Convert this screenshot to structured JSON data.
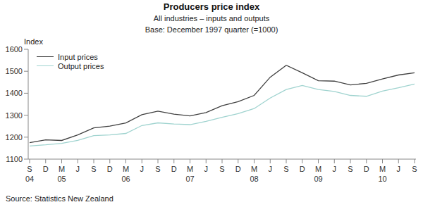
{
  "chart_data": {
    "type": "line",
    "title": "Producers price index",
    "subtitle": "All industries – inputs and outputs",
    "note": "Base: December 1997 quarter (=1000)",
    "y_label": "Index",
    "source": "Source: Statistics New Zealand",
    "categories": [
      "S\n04",
      "D",
      "M\n05",
      "J",
      "S",
      "D",
      "M\n06",
      "J",
      "S",
      "D",
      "M\n07",
      "J",
      "S",
      "D",
      "M\n08",
      "J",
      "S",
      "D",
      "M\n09",
      "J",
      "S",
      "D",
      "M\n10",
      "J",
      "S"
    ],
    "series": [
      {
        "name": "Input prices",
        "color": "#404040",
        "values": [
          1175,
          1188,
          1185,
          1210,
          1242,
          1250,
          1265,
          1302,
          1318,
          1305,
          1297,
          1312,
          1343,
          1362,
          1390,
          1473,
          1527,
          1493,
          1457,
          1455,
          1438,
          1445,
          1465,
          1483,
          1493
        ]
      },
      {
        "name": "Output prices",
        "color": "#9fd3cf",
        "values": [
          1160,
          1165,
          1172,
          1185,
          1207,
          1210,
          1217,
          1253,
          1265,
          1260,
          1257,
          1272,
          1290,
          1307,
          1330,
          1378,
          1417,
          1435,
          1417,
          1408,
          1390,
          1386,
          1410,
          1425,
          1442
        ]
      }
    ],
    "ylim": [
      1100,
      1600
    ],
    "yticks": [
      1100,
      1200,
      1300,
      1400,
      1500,
      1600
    ],
    "grid": false,
    "legend": "top-left"
  }
}
